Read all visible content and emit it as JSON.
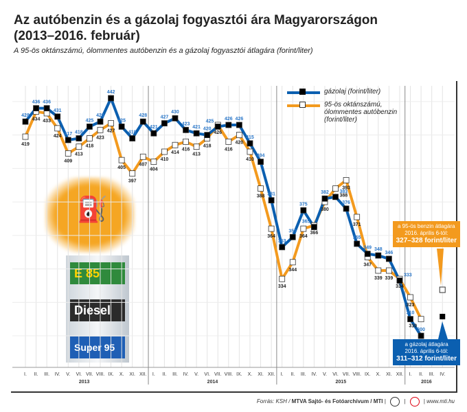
{
  "title_line1": "Az autóbenzin és a gázolaj fogyasztói ára Magyarországon",
  "title_line2": "(2013–2016. február)",
  "subtitle": "A 95-ös oktánszámú, ólommentes autóbenzin és a gázolaj fogyasztói átlagára (forint/liter)",
  "legend": {
    "diesel": "gázolaj (forint/liter)",
    "petrol": "95-ös oktánszámú, ólommentes autóbenzin (forint/liter)"
  },
  "callouts": {
    "petrol": {
      "line1": "a 95-ös benzin átlagára",
      "line2": "2016. április 6-tól:",
      "value": "327–328 forint/liter"
    },
    "diesel": {
      "line1": "a gázolaj átlagára",
      "line2": "2016. április 6-tól:",
      "value": "311–312 forint/liter"
    }
  },
  "pump": {
    "labels": [
      "E 85",
      "Diesel",
      "Super 95"
    ]
  },
  "footer": {
    "source": "Forrás: KSH / ",
    "bold": "MTVA Sajtó- és Fotóarchívum / MTI",
    "logo1": "MTVA",
    "url": "www.mti.hu"
  },
  "colors": {
    "diesel": "#0b5fb0",
    "petrol": "#f39a1e",
    "diesel_label": "#2a77c9"
  },
  "chart_data": {
    "type": "line",
    "title": "Az autóbenzin és a gázolaj fogyasztói ára Magyarországon (2013–2016. február)",
    "ylabel": "forint/liter",
    "ylim": [
      300,
      442
    ],
    "months": [
      "I.",
      "II.",
      "III.",
      "IV.",
      "V.",
      "VI.",
      "VII.",
      "VIII.",
      "IX.",
      "X.",
      "XI.",
      "XII."
    ],
    "x_months_2016": [
      "I.",
      "II.",
      "III.",
      "IV."
    ],
    "years": [
      "2013",
      "2014",
      "2015",
      "2016"
    ],
    "series": [
      {
        "name": "gázolaj (forint/liter)",
        "values": [
          428,
          436,
          436,
          431,
          417,
          418,
          425,
          428,
          442,
          425,
          418,
          428,
          421,
          427,
          430,
          423,
          421,
          420,
          425,
          426,
          426,
          415,
          404,
          381,
          353,
          359,
          375,
          365,
          382,
          383,
          376,
          355,
          349,
          348,
          346,
          333,
          310,
          300
        ]
      },
      {
        "name": "95-ös oktánszámú, ólommentes autóbenzin (forint/liter)",
        "values": [
          419,
          434,
          433,
          424,
          409,
          413,
          418,
          423,
          427,
          405,
          397,
          407,
          404,
          410,
          414,
          416,
          413,
          418,
          426,
          416,
          420,
          410,
          388,
          364,
          334,
          344,
          364,
          366,
          380,
          388,
          393,
          371,
          347,
          339,
          339,
          334,
          323,
          310
        ]
      }
    ],
    "forecast_2016_IV": {
      "diesel": 311.5,
      "petrol": 327.5
    }
  }
}
